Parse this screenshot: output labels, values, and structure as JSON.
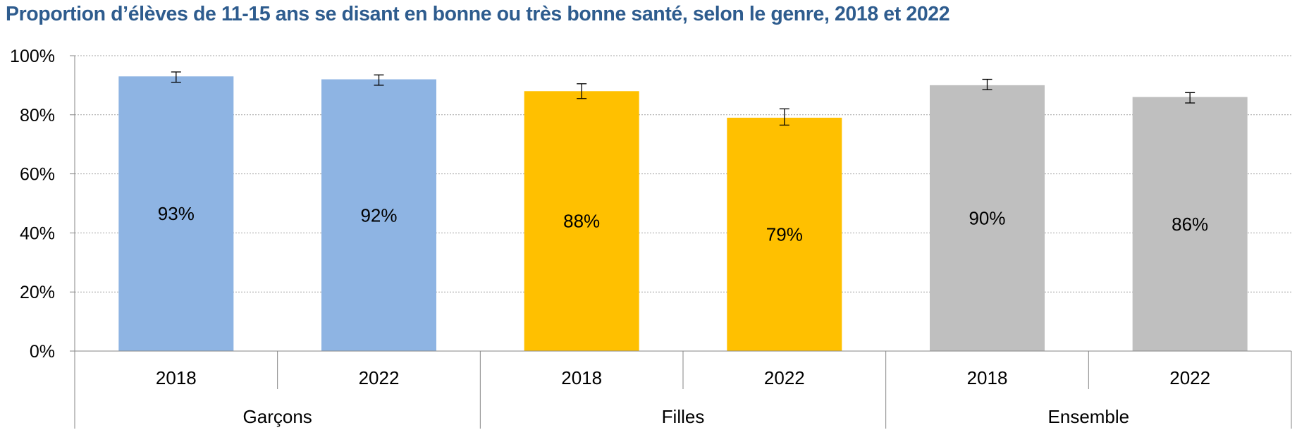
{
  "chart_data": {
    "type": "bar",
    "title": "Proportion d’élèves de 11-15 ans se disant en bonne ou très bonne santé, selon le genre, 2018 et 2022",
    "groups": [
      "Garçons",
      "Filles",
      "Ensemble"
    ],
    "categories": [
      "2018",
      "2022",
      "2018",
      "2022",
      "2018",
      "2022"
    ],
    "values": [
      93,
      92,
      88,
      79,
      90,
      86
    ],
    "value_labels": [
      "93%",
      "92%",
      "88%",
      "79%",
      "90%",
      "86%"
    ],
    "error_bars": [
      [
        91,
        94.5
      ],
      [
        90,
        93.5
      ],
      [
        85.5,
        90.5
      ],
      [
        76.5,
        82
      ],
      [
        88.5,
        92
      ],
      [
        84,
        87.5
      ]
    ],
    "bar_colors": [
      "#8eb4e3",
      "#8eb4e3",
      "#ffc000",
      "#ffc000",
      "#bfbfbf",
      "#bfbfbf"
    ],
    "ylim": [
      0,
      100
    ],
    "yticks": [
      "0%",
      "20%",
      "40%",
      "60%",
      "80%",
      "100%"
    ],
    "xlabel": "",
    "ylabel": "",
    "grid": true,
    "legend": "none"
  }
}
